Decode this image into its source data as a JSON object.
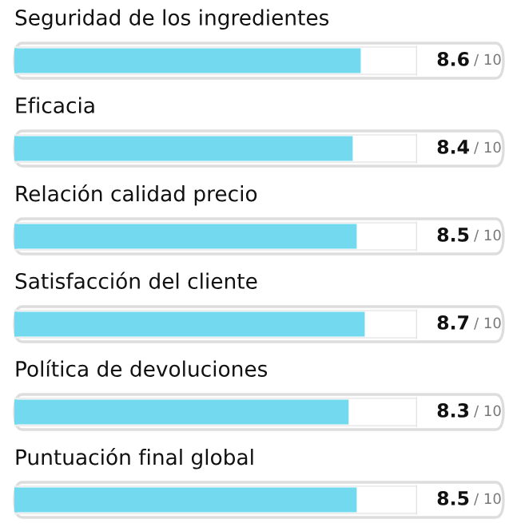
{
  "chart_data": {
    "type": "bar",
    "orientation": "horizontal",
    "categories": [
      "Seguridad de los ingredientes",
      "Eficacia",
      "Relación calidad precio",
      "Satisfacción del cliente",
      "Política de devoluciones",
      "Puntuación final global"
    ],
    "values": [
      8.6,
      8.4,
      8.5,
      8.7,
      8.3,
      8.5
    ],
    "data_labels": true,
    "annotations": [
      "/ 10",
      "/ 10",
      "/ 10",
      "/ 10",
      "/ 10",
      "/ 10"
    ],
    "color": "#72d9ee",
    "xlim": [
      0,
      10
    ]
  }
}
